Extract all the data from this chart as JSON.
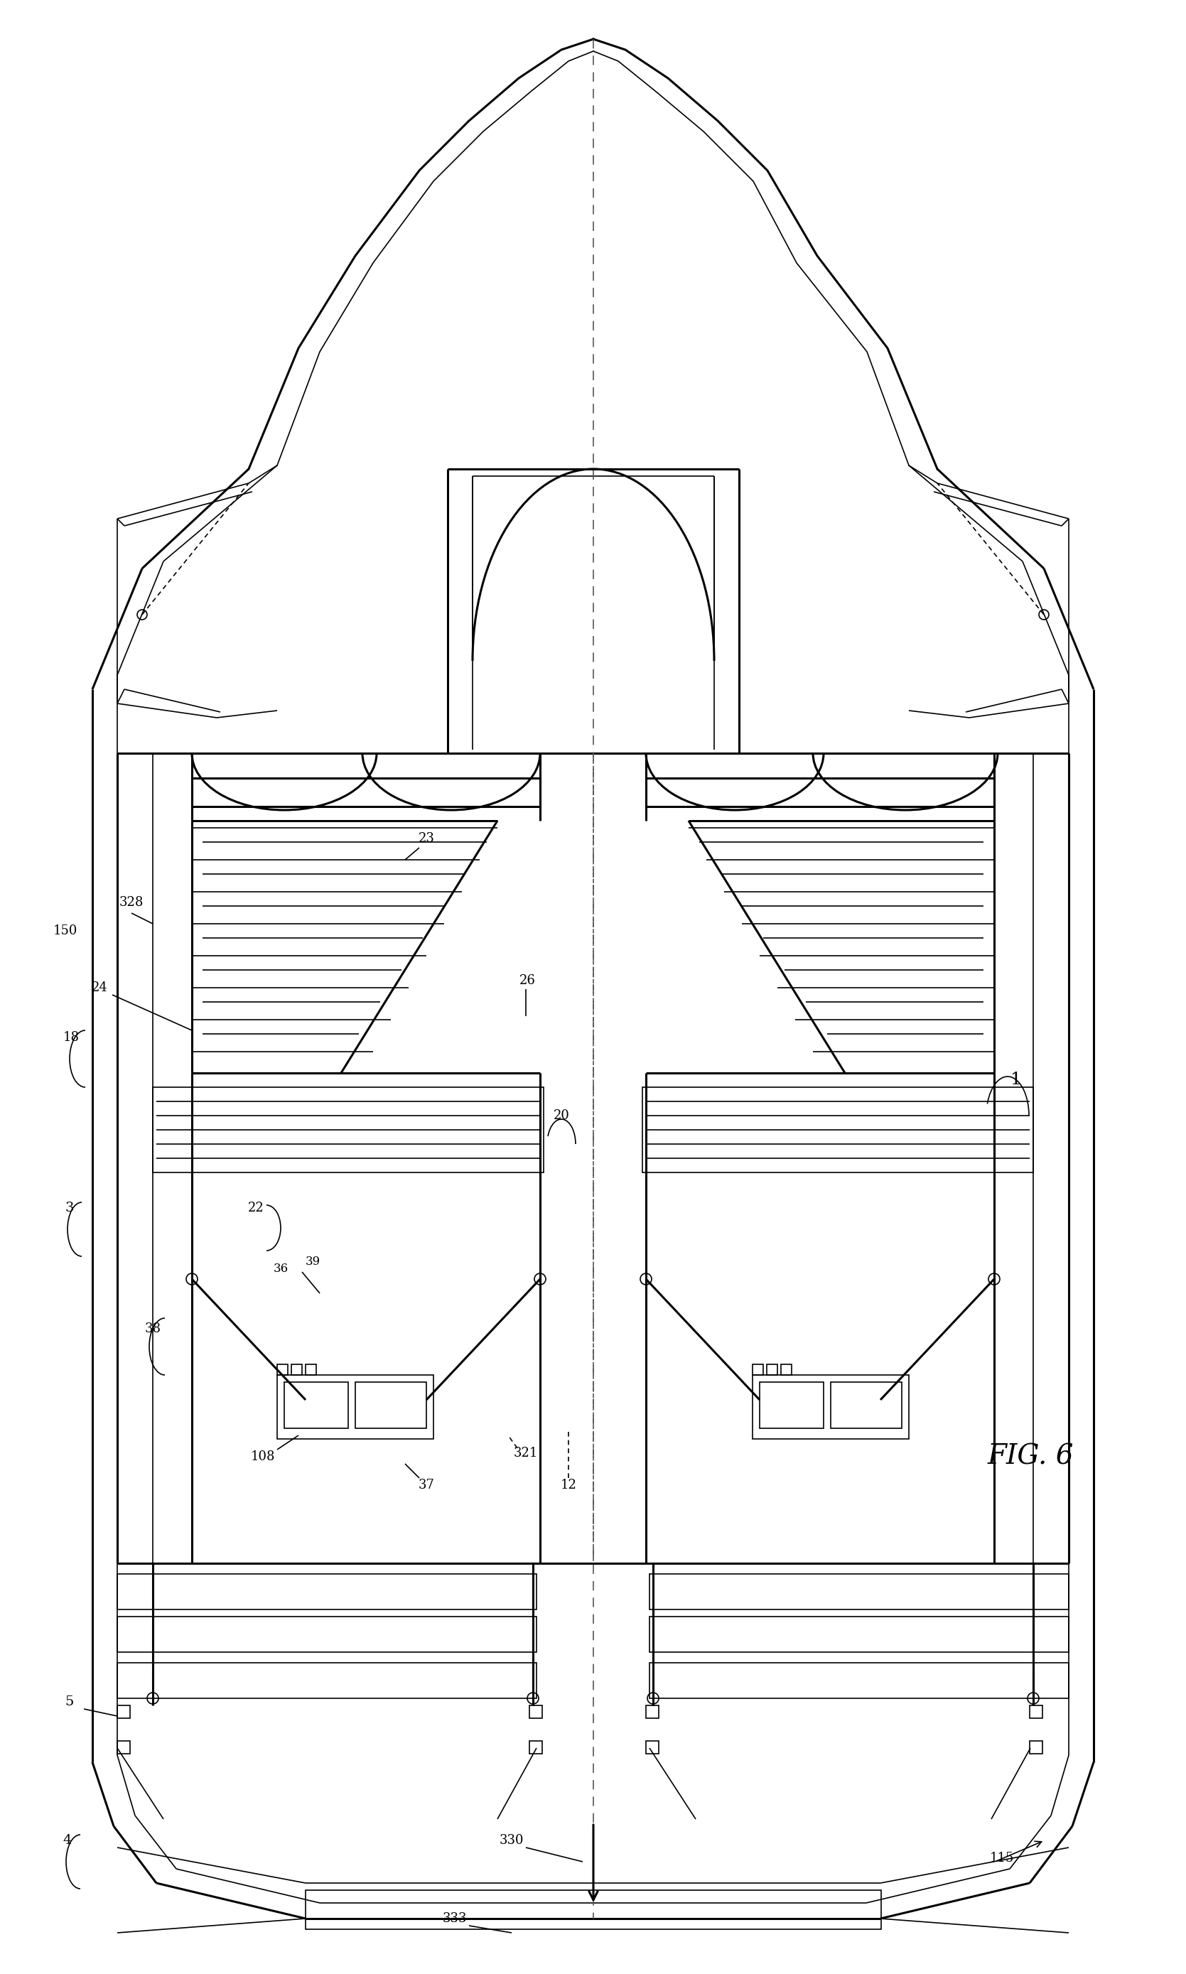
{
  "fig_label": "FIG. 6",
  "bg_color": "#ffffff",
  "line_color": "#000000",
  "fig_w": 1669,
  "fig_h": 2778
}
